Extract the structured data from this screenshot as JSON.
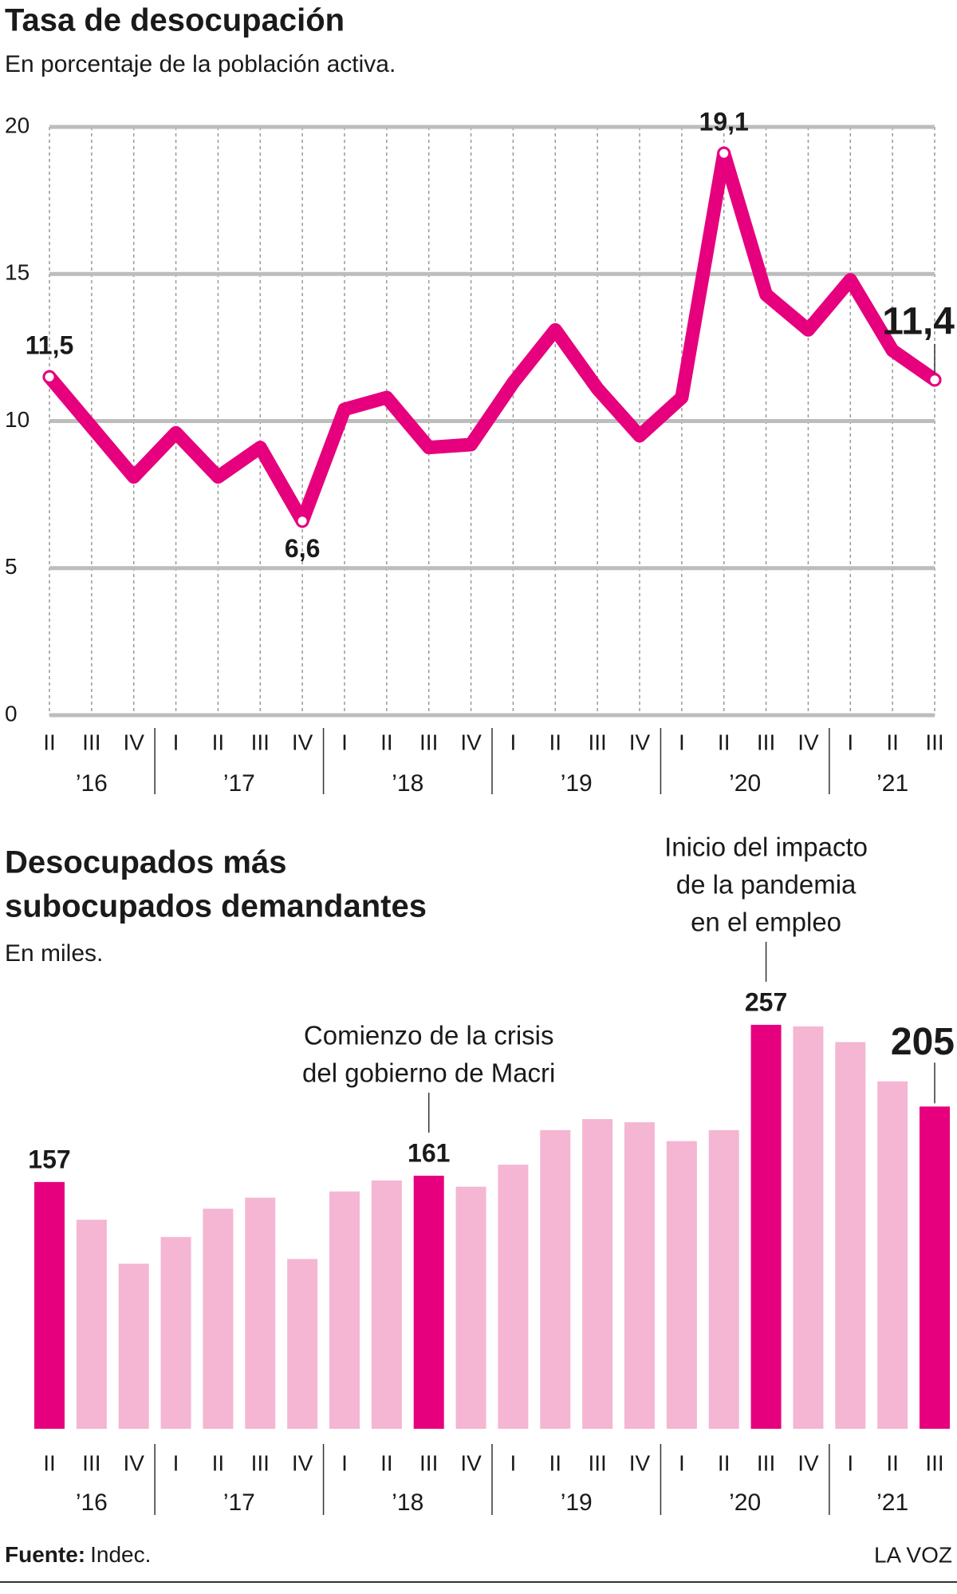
{
  "chart_data": [
    {
      "type": "line",
      "title": "Tasa de desocupación",
      "subtitle": "En porcentaje de la población activa.",
      "categories": [
        "II",
        "III",
        "IV",
        "I",
        "II",
        "III",
        "IV",
        "I",
        "II",
        "III",
        "IV",
        "I",
        "II",
        "III",
        "IV",
        "I",
        "II",
        "III",
        "IV",
        "I",
        "II",
        "III"
      ],
      "groups": [
        {
          "label": "’16",
          "count": 3
        },
        {
          "label": "’17",
          "count": 4
        },
        {
          "label": "’18",
          "count": 4
        },
        {
          "label": "’19",
          "count": 4
        },
        {
          "label": "’20",
          "count": 4
        },
        {
          "label": "’21",
          "count": 3
        }
      ],
      "values": [
        11.5,
        9.8,
        8.1,
        9.6,
        8.1,
        9.1,
        6.6,
        10.4,
        10.8,
        9.1,
        9.2,
        11.3,
        13.1,
        11.1,
        9.5,
        10.8,
        19.1,
        14.3,
        13.1,
        14.8,
        12.4,
        11.4
      ],
      "value_labels": [
        "11,5",
        null,
        null,
        null,
        null,
        null,
        "6,6",
        null,
        null,
        null,
        null,
        null,
        null,
        null,
        null,
        null,
        "19,1",
        null,
        null,
        null,
        null,
        "11,4"
      ],
      "color": "#e6007e",
      "ylim": [
        0,
        20
      ],
      "yticks": [
        0,
        5,
        10,
        15,
        20
      ],
      "grid": true
    },
    {
      "type": "bar",
      "title": [
        "Desocupados más",
        "subocupados demandantes"
      ],
      "subtitle": "En miles.",
      "categories": [
        "II",
        "III",
        "IV",
        "I",
        "II",
        "III",
        "IV",
        "I",
        "II",
        "III",
        "IV",
        "I",
        "II",
        "III",
        "IV",
        "I",
        "II",
        "III",
        "IV",
        "I",
        "II",
        "III"
      ],
      "groups": [
        {
          "label": "’16",
          "count": 3
        },
        {
          "label": "’17",
          "count": 4
        },
        {
          "label": "’18",
          "count": 4
        },
        {
          "label": "’19",
          "count": 4
        },
        {
          "label": "’20",
          "count": 4
        },
        {
          "label": "’21",
          "count": 3
        }
      ],
      "values": [
        157,
        133,
        105,
        122,
        140,
        147,
        108,
        151,
        158,
        161,
        154,
        168,
        190,
        197,
        195,
        183,
        190,
        257,
        256,
        246,
        221,
        205
      ],
      "value_labels": [
        "157",
        null,
        null,
        null,
        null,
        null,
        null,
        null,
        null,
        "161",
        null,
        null,
        null,
        null,
        null,
        null,
        null,
        "257",
        null,
        null,
        null,
        "205"
      ],
      "colors": [
        "#e6007e",
        "#f4b6d2",
        "#f4b6d2",
        "#f4b6d2",
        "#f4b6d2",
        "#f4b6d2",
        "#f4b6d2",
        "#f4b6d2",
        "#f4b6d2",
        "#e6007e",
        "#f4b6d2",
        "#f4b6d2",
        "#f4b6d2",
        "#f4b6d2",
        "#f4b6d2",
        "#f4b6d2",
        "#f4b6d2",
        "#e6007e",
        "#f4b6d2",
        "#f4b6d2",
        "#f4b6d2",
        "#e6007e"
      ],
      "ylim": [
        0,
        260
      ],
      "annotations": [
        {
          "text": [
            "Comienzo de la crisis",
            "del gobierno de Macri"
          ],
          "index": 9
        },
        {
          "text": [
            "Inicio del impacto",
            "de la pandemia",
            "en el empleo"
          ],
          "index": 17
        }
      ]
    }
  ],
  "footer": {
    "source_label": "Fuente:",
    "source": "Indec.",
    "brand": "LA VOZ"
  }
}
